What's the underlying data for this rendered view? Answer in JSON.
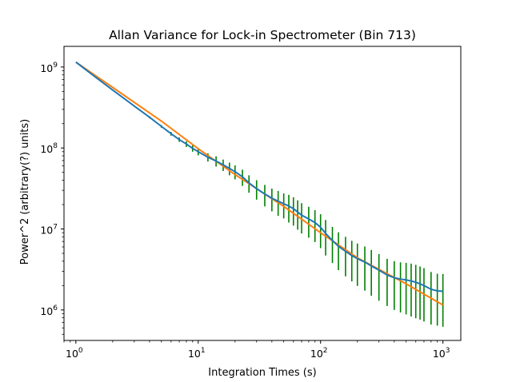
{
  "chart_data": {
    "type": "line",
    "title": "Allan Variance for Lock-in Spectrometer (Bin 713)",
    "xlabel": "Integration Times (s)",
    "ylabel": "Power^2 (arbitrary(?) units)",
    "xscale": "log",
    "yscale": "log",
    "xlim": [
      0.8,
      1400
    ],
    "ylim": [
      420000,
      1800000000
    ],
    "x_ticks": [
      {
        "base": "10",
        "exp": "0",
        "value": 1
      },
      {
        "base": "10",
        "exp": "1",
        "value": 10
      },
      {
        "base": "10",
        "exp": "2",
        "value": 100
      },
      {
        "base": "10",
        "exp": "3",
        "value": 1000
      }
    ],
    "y_ticks": [
      {
        "base": "10",
        "exp": "6",
        "value": 1000000
      },
      {
        "base": "10",
        "exp": "7",
        "value": 10000000
      },
      {
        "base": "10",
        "exp": "8",
        "value": 100000000
      },
      {
        "base": "10",
        "exp": "9",
        "value": 1000000000
      }
    ],
    "grid": false,
    "legend": "none",
    "colors": {
      "measured": "#1f77b4",
      "fit": "#ff7f0e",
      "error_bars": "#008000"
    },
    "series": [
      {
        "role": "measured",
        "x": [
          1,
          1.5,
          2,
          3,
          4,
          5,
          6,
          7,
          8,
          9,
          10,
          12,
          14,
          16,
          18,
          20,
          23,
          26,
          30,
          35,
          40,
          45,
          50,
          55,
          60,
          65,
          70,
          80,
          90,
          100,
          110,
          125,
          140,
          160,
          180,
          200,
          230,
          260,
          300,
          350,
          400,
          450,
          500,
          550,
          600,
          650,
          700,
          800,
          900,
          1000
        ],
        "y": [
          1150000000,
          720000000,
          520000000,
          330000000,
          240000000,
          185000000,
          150000000,
          127000000,
          112000000,
          99000000,
          90000000,
          77000000,
          69000000,
          62000000,
          56000000,
          51000000,
          44000000,
          37000000,
          31500000,
          27000000,
          24000000,
          22000000,
          20500000,
          19200000,
          17800000,
          16200000,
          14800000,
          13300000,
          12000000,
          10500000,
          8800000,
          7200000,
          6100000,
          5300000,
          4700000,
          4300000,
          3900000,
          3500000,
          3100000,
          2700000,
          2500000,
          2400000,
          2350000,
          2280000,
          2200000,
          2100000,
          2000000,
          1800000,
          1720000,
          1700000
        ],
        "error_low": [
          1150000000,
          720000000,
          520000000,
          325000000,
          233000000,
          178000000,
          142000000,
          119000000,
          103000000,
          90000000,
          81000000,
          68000000,
          59000000,
          52000000,
          46000000,
          41000000,
          34000000,
          28000000,
          23000000,
          19000000,
          16500000,
          14500000,
          13500000,
          12000000,
          11000000,
          9800000,
          8800000,
          7800000,
          6900000,
          5800000,
          4700000,
          3800000,
          3100000,
          2600000,
          2250000,
          1980000,
          1730000,
          1500000,
          1300000,
          1120000,
          1000000,
          930000,
          880000,
          830000,
          790000,
          760000,
          720000,
          660000,
          640000,
          620000
        ],
        "error_high": [
          1150000000,
          720000000,
          520000000,
          335000000,
          247000000,
          192000000,
          158000000,
          135000000,
          121000000,
          108000000,
          99000000,
          86000000,
          79000000,
          72000000,
          66000000,
          61000000,
          54000000,
          46000000,
          40000000,
          35000000,
          31500000,
          29500000,
          27500000,
          26400000,
          24600000,
          22600000,
          20800000,
          18800000,
          17100000,
          15200000,
          12900000,
          10600000,
          9100000,
          8000000,
          7150000,
          6620000,
          6070000,
          5500000,
          4900000,
          4280000,
          4000000,
          3870000,
          3820000,
          3730000,
          3610000,
          3440000,
          3280000,
          2940000,
          2800000,
          2780000
        ]
      },
      {
        "role": "fit",
        "x": [
          1,
          2,
          5,
          10,
          20,
          50,
          100,
          200,
          500,
          1000
        ],
        "y": [
          1150000000,
          560000000,
          215000000,
          98000000,
          47000000,
          19000000,
          9000000,
          4400000,
          2100000,
          1150000
        ]
      }
    ]
  }
}
